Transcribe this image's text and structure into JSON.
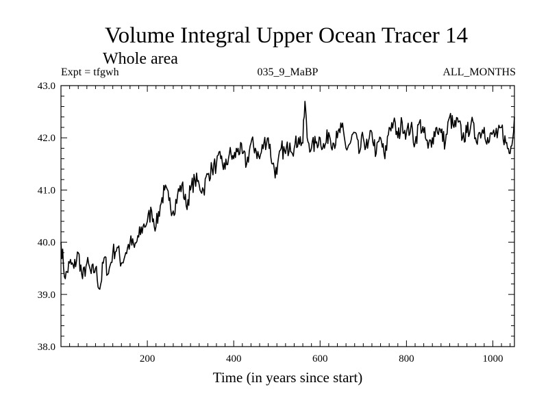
{
  "chart_data": {
    "type": "line",
    "title": "Volume Integral Upper Ocean Tracer 14",
    "subtitle": "Whole area",
    "experiment_label": "Expt = tfgwh",
    "run_label": "035_9_MaBP",
    "period_label": "ALL_MONTHS",
    "xlabel": "Time (in years since start)",
    "ylabel": "",
    "xlim": [
      0,
      1050
    ],
    "ylim": [
      38.0,
      43.0
    ],
    "x_ticks": [
      200,
      400,
      600,
      800,
      1000
    ],
    "x_tick_labels": [
      "200",
      "400",
      "600",
      "800",
      "1000"
    ],
    "y_ticks": [
      38.0,
      39.0,
      40.0,
      41.0,
      42.0,
      43.0
    ],
    "y_tick_labels": [
      "38.0",
      "39.0",
      "40.0",
      "41.0",
      "42.0",
      "43.0"
    ],
    "grid": false,
    "series": [
      {
        "name": "Tracer 14",
        "x": [
          0,
          10,
          20,
          30,
          40,
          50,
          60,
          70,
          80,
          90,
          100,
          110,
          120,
          130,
          140,
          150,
          160,
          170,
          180,
          190,
          200,
          210,
          220,
          230,
          240,
          250,
          260,
          270,
          280,
          290,
          300,
          310,
          320,
          330,
          340,
          350,
          360,
          370,
          380,
          390,
          400,
          410,
          420,
          430,
          440,
          450,
          460,
          470,
          480,
          490,
          500,
          510,
          520,
          530,
          540,
          550,
          560,
          565,
          570,
          580,
          590,
          600,
          610,
          620,
          630,
          640,
          650,
          660,
          670,
          680,
          690,
          700,
          710,
          720,
          730,
          740,
          750,
          760,
          770,
          780,
          790,
          800,
          810,
          820,
          830,
          840,
          850,
          860,
          870,
          880,
          890,
          900,
          910,
          920,
          930,
          940,
          950,
          960,
          970,
          980,
          990,
          1000,
          1010,
          1020,
          1030,
          1040,
          1050
        ],
        "values": [
          40.0,
          39.3,
          39.6,
          39.5,
          39.8,
          39.3,
          39.6,
          39.4,
          39.5,
          39.1,
          39.7,
          39.4,
          39.8,
          39.9,
          39.6,
          39.8,
          40.0,
          39.9,
          40.1,
          40.3,
          40.4,
          40.6,
          40.3,
          40.7,
          41.0,
          40.8,
          40.6,
          40.9,
          41.1,
          40.7,
          41.0,
          41.2,
          41.1,
          41.0,
          41.3,
          41.4,
          41.5,
          41.6,
          41.4,
          41.7,
          41.6,
          41.8,
          41.7,
          41.5,
          41.9,
          41.8,
          41.6,
          41.9,
          42.0,
          41.5,
          41.3,
          41.8,
          41.7,
          41.9,
          41.8,
          42.0,
          41.9,
          42.7,
          42.0,
          41.8,
          41.9,
          42.0,
          41.8,
          42.1,
          41.9,
          42.0,
          42.2,
          41.8,
          41.9,
          42.1,
          41.7,
          42.0,
          41.8,
          42.1,
          41.7,
          42.0,
          41.6,
          42.2,
          42.3,
          42.0,
          42.3,
          42.1,
          42.2,
          41.9,
          42.3,
          42.1,
          41.8,
          42.0,
          42.2,
          42.1,
          41.9,
          42.4,
          42.2,
          42.3,
          42.0,
          42.1,
          42.3,
          42.0,
          42.1,
          42.2,
          41.9,
          42.1,
          42.0,
          42.2,
          41.9,
          41.7,
          42.4
        ]
      }
    ],
    "colors": {
      "line": "#000000",
      "axes": "#000000",
      "background": "#ffffff"
    }
  }
}
